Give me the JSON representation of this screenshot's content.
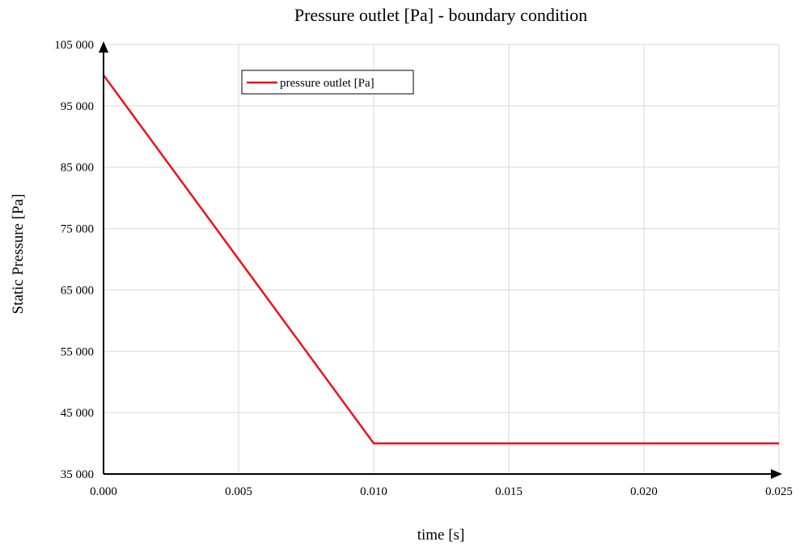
{
  "chart_data": {
    "type": "line",
    "title": "Pressure outlet [Pa] - boundary condition",
    "xlabel": "time [s]",
    "ylabel": "Static Pressure [Pa]",
    "xlim": [
      0.0,
      0.025
    ],
    "ylim": [
      35000,
      105000
    ],
    "x_ticks": [
      "0.000",
      "0.005",
      "0.010",
      "0.015",
      "0.020",
      "0.025"
    ],
    "y_ticks": [
      "35 000",
      "45 000",
      "55 000",
      "65 000",
      "75 000",
      "85 000",
      "95 000",
      "105 000"
    ],
    "x_tick_values": [
      0.0,
      0.005,
      0.01,
      0.015,
      0.02,
      0.025
    ],
    "y_tick_values": [
      35000,
      45000,
      55000,
      65000,
      75000,
      85000,
      95000,
      105000
    ],
    "grid": true,
    "legend_position": "top-left",
    "series": [
      {
        "name": "pressure outlet [Pa]",
        "color": "#e8141c",
        "x": [
          0.0,
          0.01,
          0.025
        ],
        "y": [
          100000,
          40000,
          40000
        ]
      }
    ]
  }
}
